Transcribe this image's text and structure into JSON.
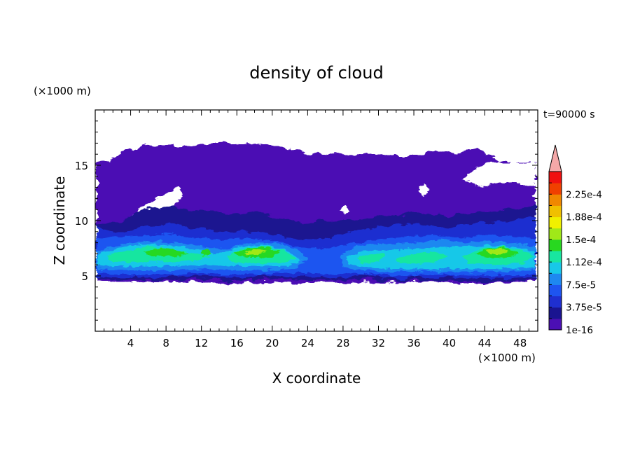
{
  "chart_data": {
    "type": "heatmap",
    "title": "density of cloud",
    "xlabel": "X coordinate",
    "ylabel": "Z coordinate",
    "x_unit": "(×1000 m)",
    "y_unit": "(×1000 m)",
    "time_label": "t=90000 s",
    "xlim": [
      0,
      50
    ],
    "ylim": [
      0,
      20
    ],
    "x_ticks": [
      4,
      8,
      12,
      16,
      20,
      24,
      28,
      32,
      36,
      40,
      44,
      48
    ],
    "y_ticks": [
      5,
      10,
      15
    ],
    "colorbar": {
      "levels": [
        1e-16,
        1.875e-05,
        3.75e-05,
        5.625e-05,
        7.5e-05,
        9.375e-05,
        0.0001125,
        0.00013125,
        0.00015,
        0.00016875,
        0.0001875,
        0.00020625,
        0.000225,
        0.00024375
      ],
      "tick_labels": [
        "1e-16",
        "3.75e-5",
        "7.5e-5",
        "1.12e-4",
        "1.5e-4",
        "1.88e-4",
        "2.25e-4"
      ],
      "colors": [
        "#4b0fb4",
        "#1a1490",
        "#1f2fd0",
        "#1e55f0",
        "#1e88f0",
        "#18c8e8",
        "#18e6a0",
        "#28d820",
        "#a0e818",
        "#f0f000",
        "#f0c000",
        "#f08800",
        "#f04000",
        "#f01010"
      ],
      "extend_color": "#f4a8a8"
    },
    "cloud_layers": [
      {
        "z_range": [
          4.6,
          15.2
        ],
        "level": "1e-16 – 1.875e-5",
        "note": "upper anvil layer spanning x 0–50, top up to ~16.8"
      },
      {
        "z_range": [
          4.8,
          11.5
        ],
        "level": "1.875e-5 – 7.5e-5"
      },
      {
        "z_range": [
          5.4,
          7.8
        ],
        "level": "7.5e-5 – 1.69e-4",
        "cores_x": [
          9,
          19,
          33,
          45
        ]
      }
    ]
  }
}
